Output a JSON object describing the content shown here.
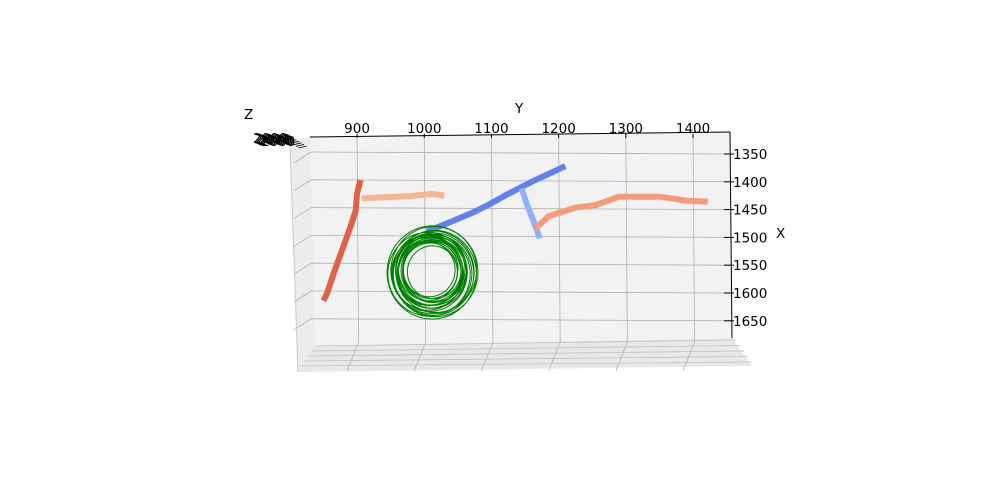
{
  "chart_data": {
    "type": "line",
    "subtype": "3d-line",
    "title": "",
    "xlabel": "X",
    "ylabel": "Y",
    "zlabel": "Z",
    "xlim": [
      1330,
      1670
    ],
    "ylim": [
      830,
      1430
    ],
    "x_ticks": [
      "1350",
      "1400",
      "1450",
      "1500",
      "1550",
      "1600",
      "1650"
    ],
    "y_ticks": [
      "900",
      "1000",
      "1100",
      "1200",
      "1300",
      "1400"
    ],
    "z_ticks": [
      "2000",
      "2000",
      "2000",
      "2000",
      "2000",
      "2000"
    ],
    "grid": true,
    "legend": "none",
    "series": [
      {
        "color": "#e06048",
        "width": 6,
        "points": [
          [
            1395,
            905
          ],
          [
            1420,
            900
          ],
          [
            1450,
            898
          ],
          [
            1480,
            890
          ],
          [
            1520,
            878
          ],
          [
            1560,
            866
          ],
          [
            1600,
            855
          ],
          [
            1612,
            850
          ]
        ]
      },
      {
        "color": "#f7b596",
        "width": 6,
        "points": [
          [
            1428,
            907
          ],
          [
            1426,
            940
          ],
          [
            1424,
            980
          ],
          [
            1420,
            1010
          ],
          [
            1423,
            1030
          ]
        ]
      },
      {
        "color": "#6282ea",
        "width": 6,
        "points": [
          [
            1488,
            1004
          ],
          [
            1470,
            1040
          ],
          [
            1452,
            1075
          ],
          [
            1440,
            1095
          ],
          [
            1420,
            1125
          ],
          [
            1398,
            1160
          ],
          [
            1370,
            1210
          ]
        ]
      },
      {
        "color": "#91b2fa",
        "width": 6,
        "points": [
          [
            1410,
            1145
          ],
          [
            1440,
            1153
          ],
          [
            1470,
            1163
          ],
          [
            1500,
            1172
          ]
        ]
      },
      {
        "color": "#f39c7c",
        "width": 6,
        "points": [
          [
            1483,
            1165
          ],
          [
            1460,
            1185
          ],
          [
            1445,
            1225
          ],
          [
            1440,
            1255
          ],
          [
            1425,
            1290
          ],
          [
            1425,
            1350
          ],
          [
            1432,
            1390
          ],
          [
            1434,
            1422
          ]
        ]
      },
      {
        "color": "#008000",
        "width": 1,
        "style": "tangled-loop",
        "center": [
          1560,
          1010
        ],
        "radius": [
          37,
          80
        ],
        "points": []
      }
    ]
  }
}
